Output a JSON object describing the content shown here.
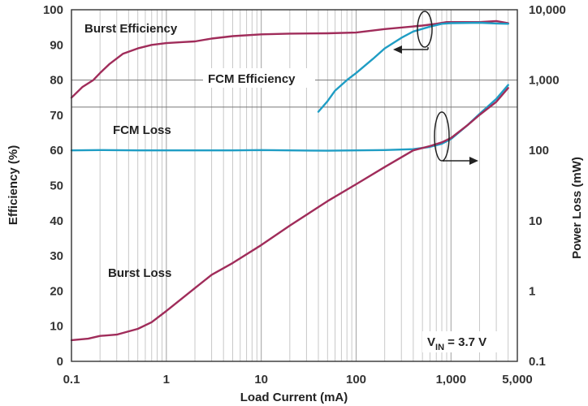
{
  "chart_data": {
    "type": "line",
    "xscale": "log",
    "xlim": [
      0.1,
      5000
    ],
    "x_ticks": [
      0.1,
      1,
      10,
      100,
      1000,
      5000
    ],
    "x_tick_labels": [
      "0.1",
      "1",
      "10",
      "100",
      "1,000",
      "5,000"
    ],
    "xlabel": "Load Current (mA)",
    "y_left": {
      "label": "Efficiency (%)",
      "lim": [
        0,
        100
      ],
      "ticks": [
        0,
        10,
        20,
        30,
        40,
        50,
        60,
        70,
        80,
        90,
        100
      ],
      "tick_labels": [
        "0",
        "10",
        "20",
        "30",
        "40",
        "50",
        "60",
        "70",
        "80",
        "90",
        "100"
      ]
    },
    "y_right": {
      "label": "Power Loss (mW)",
      "scale": "log",
      "lim": [
        0.1,
        10000
      ],
      "ticks": [
        0.1,
        1,
        10,
        100,
        1000,
        10000
      ],
      "tick_labels": [
        "0.1",
        "1",
        "10",
        "100",
        "1,000",
        "10,000"
      ]
    },
    "series": [
      {
        "name": "Burst Efficiency",
        "axis": "left",
        "color": "#a02c5a",
        "x": [
          0.1,
          0.13,
          0.17,
          0.2,
          0.25,
          0.35,
          0.5,
          0.7,
          1,
          1.5,
          2,
          3,
          5,
          10,
          20,
          50,
          100,
          200,
          500,
          700,
          900,
          1000,
          2000,
          3000,
          4000
        ],
        "y": [
          75,
          78,
          80,
          82,
          84.5,
          87.5,
          89,
          90,
          90.5,
          90.8,
          91,
          91.8,
          92.5,
          93,
          93.2,
          93.3,
          93.5,
          94.5,
          95.5,
          96,
          96.5,
          96.5,
          96.5,
          96.8,
          96.2
        ]
      },
      {
        "name": "FCM Efficiency",
        "axis": "left",
        "color": "#1f9dc4",
        "x": [
          40,
          50,
          60,
          80,
          100,
          150,
          200,
          300,
          400,
          600,
          800,
          1000,
          2000,
          3000,
          4000
        ],
        "y": [
          71,
          74,
          77,
          80,
          82,
          86,
          89,
          92,
          93.8,
          95.2,
          96,
          96.2,
          96.3,
          96.1,
          96
        ]
      },
      {
        "name": "FCM Loss",
        "axis": "right",
        "color": "#1f9dc4",
        "x": [
          0.1,
          0.2,
          0.5,
          1,
          2,
          5,
          10,
          20,
          50,
          100,
          200,
          400,
          600,
          800,
          1000,
          1500,
          2000,
          3000,
          4000
        ],
        "y": [
          100,
          101,
          100,
          100,
          100,
          100,
          101,
          100,
          99,
          100,
          101,
          104,
          112,
          124,
          145,
          230,
          330,
          540,
          850
        ]
      },
      {
        "name": "Burst Loss",
        "axis": "right",
        "color": "#a02c5a",
        "x": [
          0.1,
          0.15,
          0.2,
          0.3,
          0.5,
          0.7,
          1,
          2,
          3,
          5,
          10,
          20,
          50,
          100,
          200,
          400,
          600,
          800,
          1000,
          1500,
          2000,
          3000,
          4000
        ],
        "y": [
          0.2,
          0.21,
          0.23,
          0.24,
          0.29,
          0.36,
          0.52,
          1.1,
          1.7,
          2.5,
          4.5,
          8.5,
          19,
          33,
          58,
          100,
          115,
          130,
          150,
          230,
          320,
          490,
          770
        ]
      }
    ],
    "annotations": {
      "burst_efficiency": "Burst Efficiency",
      "fcm_efficiency": "FCM Efficiency",
      "fcm_loss": "FCM Loss",
      "burst_loss": "Burst Loss",
      "vin_main": "V",
      "vin_sub": "IN",
      "vin_value": " = 3.7 V"
    }
  }
}
